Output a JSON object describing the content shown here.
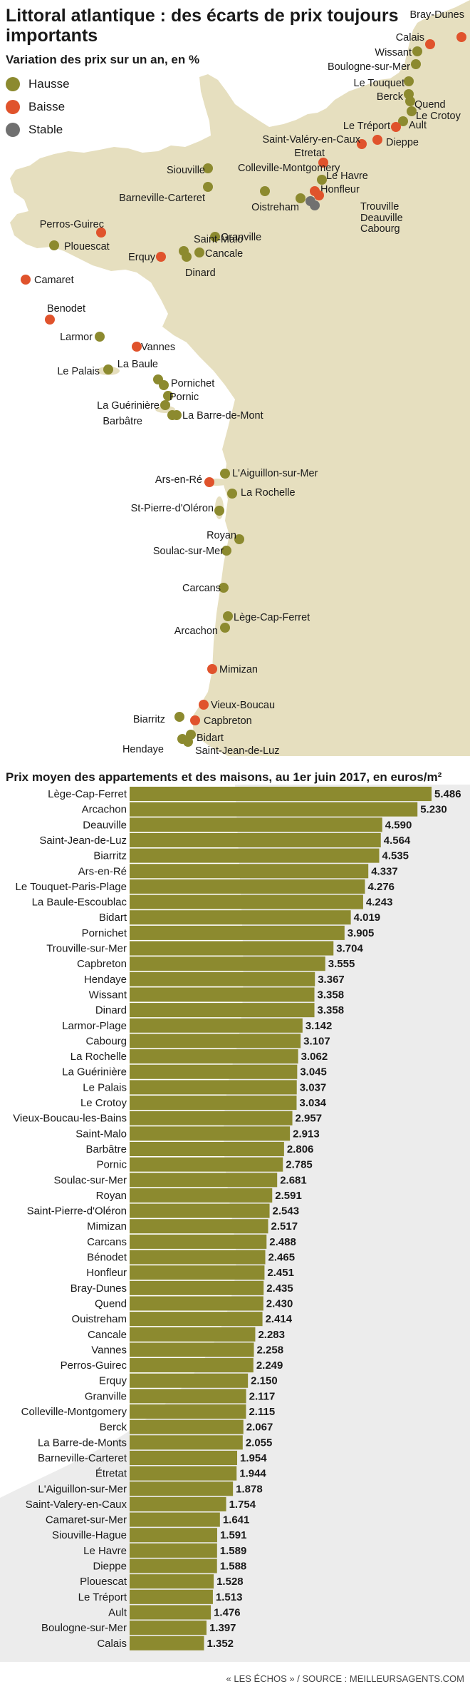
{
  "title": "Littoral atlantique : des écarts de prix toujours importants",
  "map": {
    "subtitle": "Variation des prix sur un an, en %",
    "legend": [
      {
        "label": "Hausse",
        "color": "#8c8a2f"
      },
      {
        "label": "Baisse",
        "color": "#e0532c"
      },
      {
        "label": "Stable",
        "color": "#707070"
      }
    ],
    "cities": [
      {
        "name": "Bray-Dunes",
        "status": "baisse"
      },
      {
        "name": "Calais",
        "status": "baisse"
      },
      {
        "name": "Wissant",
        "status": "hausse"
      },
      {
        "name": "Boulogne-sur-Mer",
        "status": "hausse"
      },
      {
        "name": "Le Touquet",
        "status": "hausse"
      },
      {
        "name": "Berck",
        "status": "hausse"
      },
      {
        "name": "Quend",
        "status": "hausse"
      },
      {
        "name": "Le Crotoy",
        "status": "hausse"
      },
      {
        "name": "Ault",
        "status": "hausse"
      },
      {
        "name": "Le Tréport",
        "status": "baisse"
      },
      {
        "name": "Saint-Valéry-en-Caux",
        "status": "baisse"
      },
      {
        "name": "Dieppe",
        "status": "baisse"
      },
      {
        "name": "Etretat",
        "status": "baisse"
      },
      {
        "name": "Le Havre",
        "status": "hausse"
      },
      {
        "name": "Honfleur",
        "status": "baisse"
      },
      {
        "name": "Trouville",
        "status": "baisse"
      },
      {
        "name": "Deauville",
        "status": "stable"
      },
      {
        "name": "Cabourg",
        "status": "stable"
      },
      {
        "name": "Oistreham",
        "status": "hausse"
      },
      {
        "name": "Colleville-Montgomery",
        "status": "hausse"
      },
      {
        "name": "Siouville",
        "status": "hausse"
      },
      {
        "name": "Barneville-Carteret",
        "status": "hausse"
      },
      {
        "name": "Granville",
        "status": "hausse"
      },
      {
        "name": "Saint-Malo",
        "status": "hausse"
      },
      {
        "name": "Cancale",
        "status": "hausse"
      },
      {
        "name": "Erquy",
        "status": "baisse"
      },
      {
        "name": "Dinard",
        "status": "hausse"
      },
      {
        "name": "Perros-Guirec",
        "status": "baisse"
      },
      {
        "name": "Plouescat",
        "status": "hausse"
      },
      {
        "name": "Camaret",
        "status": "baisse"
      },
      {
        "name": "Benodet",
        "status": "baisse"
      },
      {
        "name": "Larmor",
        "status": "hausse"
      },
      {
        "name": "Vannes",
        "status": "baisse"
      },
      {
        "name": "Le Palais",
        "status": "hausse"
      },
      {
        "name": "La Baule",
        "status": "hausse"
      },
      {
        "name": "Pornichet",
        "status": "hausse"
      },
      {
        "name": "Pornic",
        "status": "hausse"
      },
      {
        "name": "La Guérinière",
        "status": "hausse"
      },
      {
        "name": "Barbâtre",
        "status": "hausse"
      },
      {
        "name": "La Barre-de-Mont",
        "status": "hausse"
      },
      {
        "name": "Ars-en-Ré",
        "status": "baisse"
      },
      {
        "name": "L'Aiguillon-sur-Mer",
        "status": "hausse"
      },
      {
        "name": "La Rochelle",
        "status": "hausse"
      },
      {
        "name": "St-Pierre-d'Oléron",
        "status": "hausse"
      },
      {
        "name": "Royan",
        "status": "hausse"
      },
      {
        "name": "Soulac-sur-Mer",
        "status": "hausse"
      },
      {
        "name": "Carcans",
        "status": "hausse"
      },
      {
        "name": "Lège-Cap-Ferret",
        "status": "hausse"
      },
      {
        "name": "Arcachon",
        "status": "hausse"
      },
      {
        "name": "Mimizan",
        "status": "baisse"
      },
      {
        "name": "Vieux-Boucau",
        "status": "baisse"
      },
      {
        "name": "Biarritz",
        "status": "hausse"
      },
      {
        "name": "Capbreton",
        "status": "baisse"
      },
      {
        "name": "Bidart",
        "status": "hausse"
      },
      {
        "name": "Hendaye",
        "status": "hausse"
      },
      {
        "name": "Saint-Jean-de-Luz",
        "status": "hausse"
      }
    ]
  },
  "chart_data": {
    "type": "bar",
    "orientation": "horizontal",
    "title": "Prix moyen des appartements et des maisons, au 1er juin 2017, en euros/m²",
    "bar_color": "#8c8a2f",
    "categories": [
      "Lège-Cap-Ferret",
      "Arcachon",
      "Deauville",
      "Saint-Jean-de-Luz",
      "Biarritz",
      "Ars-en-Ré",
      "Le Touquet-Paris-Plage",
      "La Baule-Escoublac",
      "Bidart",
      "Pornichet",
      "Trouville-sur-Mer",
      "Capbreton",
      "Hendaye",
      "Wissant",
      "Dinard",
      "Larmor-Plage",
      "Cabourg",
      "La Rochelle",
      "La Guérinière",
      "Le Palais",
      "Le Crotoy",
      "Vieux-Boucau-les-Bains",
      "Saint-Malo",
      "Barbâtre",
      "Pornic",
      "Soulac-sur-Mer",
      "Royan",
      "Saint-Pierre-d'Oléron",
      "Mimizan",
      "Carcans",
      "Bénodet",
      "Honfleur",
      "Bray-Dunes",
      "Quend",
      "Ouistreham",
      "Cancale",
      "Vannes",
      "Perros-Guirec",
      "Erquy",
      "Granville",
      "Colleville-Montgomery",
      "Berck",
      "La Barre-de-Monts",
      "Barneville-Carteret",
      "Étretat",
      "L'Aiguillon-sur-Mer",
      "Saint-Valery-en-Caux",
      "Camaret-sur-Mer",
      "Siouville-Hague",
      "Le Havre",
      "Dieppe",
      "Plouescat",
      "Le Tréport",
      "Ault",
      "Boulogne-sur-Mer",
      "Calais"
    ],
    "values": [
      5486,
      5230,
      4590,
      4564,
      4535,
      4337,
      4276,
      4243,
      4019,
      3905,
      3704,
      3555,
      3367,
      3358,
      3358,
      3142,
      3107,
      3062,
      3045,
      3037,
      3034,
      2957,
      2913,
      2806,
      2785,
      2681,
      2591,
      2543,
      2517,
      2488,
      2465,
      2451,
      2435,
      2430,
      2414,
      2283,
      2258,
      2249,
      2150,
      2117,
      2115,
      2067,
      2055,
      1954,
      1944,
      1878,
      1754,
      1641,
      1591,
      1589,
      1588,
      1528,
      1513,
      1476,
      1397,
      1352
    ],
    "value_labels": [
      "5.486",
      "5.230",
      "4.590",
      "4.564",
      "4.535",
      "4.337",
      "4.276",
      "4.243",
      "4.019",
      "3.905",
      "3.704",
      "3.555",
      "3.367",
      "3.358",
      "3.358",
      "3.142",
      "3.107",
      "3.062",
      "3.045",
      "3.037",
      "3.034",
      "2.957",
      "2.913",
      "2.806",
      "2.785",
      "2.681",
      "2.591",
      "2.543",
      "2.517",
      "2.488",
      "2.465",
      "2.451",
      "2.435",
      "2.430",
      "2.414",
      "2.283",
      "2.258",
      "2.249",
      "2.150",
      "2.117",
      "2.115",
      "2.067",
      "2.055",
      "1.954",
      "1.944",
      "1.878",
      "1.754",
      "1.641",
      "1.591",
      "1.589",
      "1.588",
      "1.528",
      "1.513",
      "1.476",
      "1.397",
      "1.352"
    ],
    "xlim": [
      0,
      5486
    ]
  },
  "source": "« LES ÉCHOS » / SOURCE : MEILLEURSAGENTS.COM"
}
